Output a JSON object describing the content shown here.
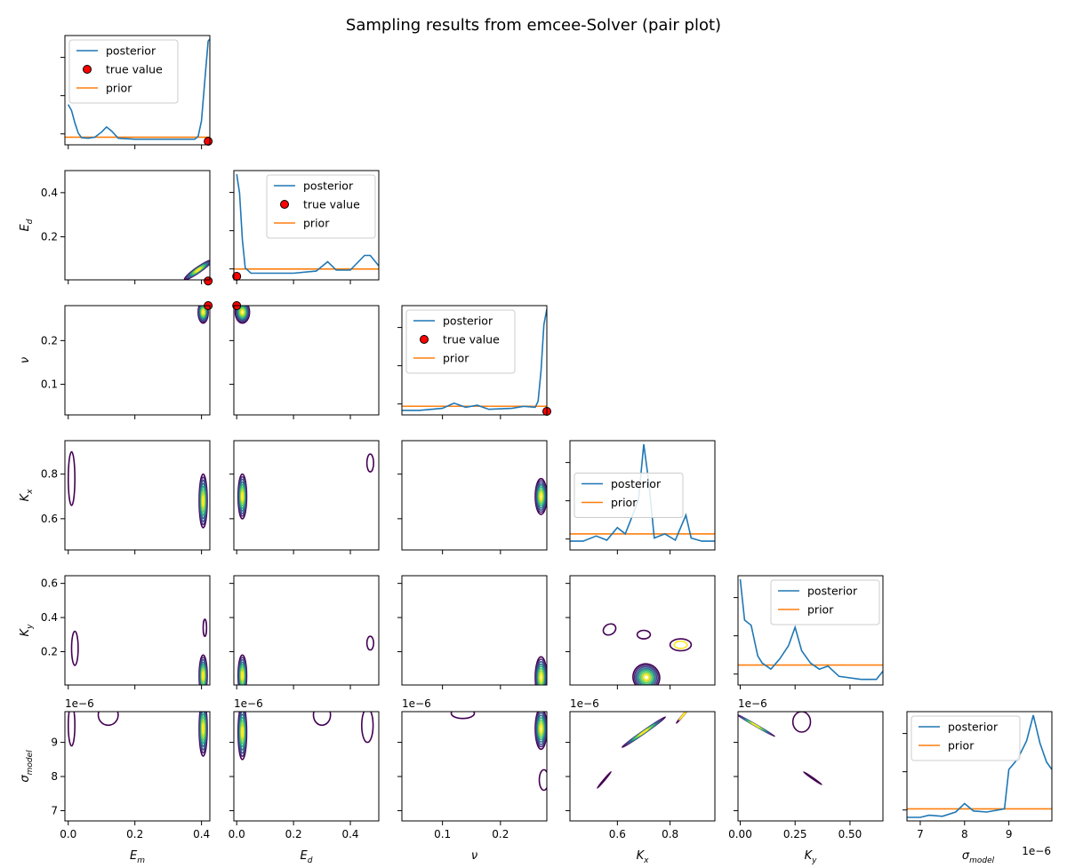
{
  "chart_data": {
    "type": "pair-plot",
    "title": "Sampling results from emcee-Solver (pair plot)",
    "parameters": [
      {
        "key": "E_m",
        "label_base": "E",
        "label_sub": "m",
        "range": [
          -0.01,
          0.425
        ],
        "ticks": [
          "0.0",
          "0.2",
          "0.4"
        ],
        "tick_values": [
          0.0,
          0.2,
          0.4
        ],
        "true_value": 0.42
      },
      {
        "key": "E_d",
        "label_base": "E",
        "label_sub": "d",
        "range": [
          -0.01,
          0.5
        ],
        "display_range": [
          0.005,
          0.5
        ],
        "ticks": [
          "0.0",
          "0.2",
          "0.4"
        ],
        "tick_values": [
          0.0,
          0.2,
          0.4
        ],
        "y_ticks": [
          "0.2",
          "0.4"
        ],
        "y_tick_values": [
          0.2,
          0.4
        ],
        "true_value": 0.0
      },
      {
        "key": "nu",
        "label_base": "ν",
        "label_sub": "",
        "range": [
          0.03,
          0.28
        ],
        "ticks": [
          "0.1",
          "0.2"
        ],
        "tick_values": [
          0.1,
          0.2
        ],
        "y_ticks": [
          "0.1",
          "0.2"
        ],
        "y_tick_values": [
          0.1,
          0.2
        ],
        "true_value": 0.28
      },
      {
        "key": "K_x",
        "label_base": "K",
        "label_sub": "x",
        "range": [
          0.42,
          0.97
        ],
        "display_range": [
          0.46,
          0.95
        ],
        "ticks": [
          "0.6",
          "0.8"
        ],
        "tick_values": [
          0.6,
          0.8
        ],
        "y_ticks": [
          "0.6",
          "0.8"
        ],
        "y_tick_values": [
          0.6,
          0.8
        ]
      },
      {
        "key": "K_y",
        "label_base": "K",
        "label_sub": "y",
        "range": [
          -0.01,
          0.65
        ],
        "display_range": [
          0.005,
          0.645
        ],
        "ticks": [
          "0.00",
          "0.25",
          "0.50"
        ],
        "tick_values": [
          0.0,
          0.25,
          0.5
        ],
        "y_ticks": [
          "0.2",
          "0.4",
          "0.6"
        ],
        "y_tick_values": [
          0.2,
          0.4,
          0.6
        ]
      },
      {
        "key": "sigma_model",
        "label_base": "σ",
        "label_sub": "model",
        "range": [
          6.7,
          9.97
        ],
        "display_range": [
          6.7,
          9.9
        ],
        "offset": "1e−6",
        "ticks": [
          "7",
          "8",
          "9"
        ],
        "tick_values": [
          7,
          8,
          9
        ],
        "y_ticks": [
          "7",
          "8",
          "9"
        ],
        "y_tick_values": [
          7,
          8,
          9
        ]
      }
    ],
    "diagonal": [
      {
        "legend": [
          "posterior",
          "true value",
          "prior"
        ],
        "legend_pos": "upper-left",
        "prior_level": 0.04,
        "posterior": [
          [
            0.0,
            0.36
          ],
          [
            0.01,
            0.3
          ],
          [
            0.02,
            0.18
          ],
          [
            0.03,
            0.08
          ],
          [
            0.04,
            0.035
          ],
          [
            0.06,
            0.03
          ],
          [
            0.08,
            0.04
          ],
          [
            0.1,
            0.09
          ],
          [
            0.115,
            0.14
          ],
          [
            0.13,
            0.1
          ],
          [
            0.15,
            0.03
          ],
          [
            0.2,
            0.02
          ],
          [
            0.3,
            0.02
          ],
          [
            0.38,
            0.02
          ],
          [
            0.39,
            0.05
          ],
          [
            0.4,
            0.2
          ],
          [
            0.41,
            0.6
          ],
          [
            0.42,
            0.98
          ],
          [
            0.425,
            1.0
          ]
        ]
      },
      {
        "legend": [
          "posterior",
          "true value",
          "prior"
        ],
        "legend_pos": "upper-right",
        "prior_level": 0.07,
        "posterior": [
          [
            0.0,
            0.98
          ],
          [
            0.01,
            0.8
          ],
          [
            0.02,
            0.35
          ],
          [
            0.03,
            0.08
          ],
          [
            0.05,
            0.03
          ],
          [
            0.1,
            0.03
          ],
          [
            0.2,
            0.03
          ],
          [
            0.28,
            0.05
          ],
          [
            0.32,
            0.14
          ],
          [
            0.35,
            0.06
          ],
          [
            0.4,
            0.06
          ],
          [
            0.45,
            0.2
          ],
          [
            0.47,
            0.2
          ],
          [
            0.5,
            0.1
          ]
        ]
      },
      {
        "legend": [
          "posterior",
          "true value",
          "prior"
        ],
        "legend_pos": "upper-left",
        "prior_level": 0.05,
        "posterior": [
          [
            0.03,
            0.01
          ],
          [
            0.06,
            0.01
          ],
          [
            0.1,
            0.03
          ],
          [
            0.12,
            0.08
          ],
          [
            0.14,
            0.04
          ],
          [
            0.16,
            0.06
          ],
          [
            0.18,
            0.02
          ],
          [
            0.22,
            0.03
          ],
          [
            0.24,
            0.05
          ],
          [
            0.26,
            0.04
          ],
          [
            0.265,
            0.1
          ],
          [
            0.27,
            0.4
          ],
          [
            0.275,
            0.85
          ],
          [
            0.28,
            1.0
          ]
        ]
      },
      {
        "legend": [
          "posterior",
          "prior"
        ],
        "legend_pos": "center-left",
        "prior_level": 0.12,
        "posterior": [
          [
            0.42,
            0.05
          ],
          [
            0.47,
            0.05
          ],
          [
            0.52,
            0.1
          ],
          [
            0.56,
            0.06
          ],
          [
            0.6,
            0.18
          ],
          [
            0.63,
            0.12
          ],
          [
            0.65,
            0.25
          ],
          [
            0.68,
            0.45
          ],
          [
            0.7,
            0.98
          ],
          [
            0.72,
            0.6
          ],
          [
            0.74,
            0.08
          ],
          [
            0.78,
            0.12
          ],
          [
            0.82,
            0.06
          ],
          [
            0.86,
            0.3
          ],
          [
            0.88,
            0.08
          ],
          [
            0.92,
            0.05
          ],
          [
            0.97,
            0.05
          ]
        ]
      },
      {
        "legend": [
          "posterior",
          "prior"
        ],
        "legend_pos": "upper-right",
        "prior_level": 0.16,
        "posterior": [
          [
            0.0,
            1.0
          ],
          [
            0.02,
            0.6
          ],
          [
            0.05,
            0.55
          ],
          [
            0.08,
            0.25
          ],
          [
            0.1,
            0.18
          ],
          [
            0.14,
            0.12
          ],
          [
            0.18,
            0.22
          ],
          [
            0.22,
            0.35
          ],
          [
            0.25,
            0.53
          ],
          [
            0.28,
            0.3
          ],
          [
            0.32,
            0.18
          ],
          [
            0.36,
            0.12
          ],
          [
            0.4,
            0.15
          ],
          [
            0.45,
            0.05
          ],
          [
            0.55,
            0.02
          ],
          [
            0.62,
            0.02
          ],
          [
            0.65,
            0.1
          ]
        ]
      },
      {
        "legend": [
          "posterior",
          "prior"
        ],
        "legend_pos": "upper-left",
        "prior_level": 0.08,
        "posterior": [
          [
            6.7,
            0.0
          ],
          [
            7.0,
            0.0
          ],
          [
            7.2,
            0.02
          ],
          [
            7.5,
            0.01
          ],
          [
            7.8,
            0.05
          ],
          [
            8.0,
            0.13
          ],
          [
            8.2,
            0.06
          ],
          [
            8.5,
            0.05
          ],
          [
            8.9,
            0.08
          ],
          [
            9.0,
            0.45
          ],
          [
            9.2,
            0.55
          ],
          [
            9.4,
            0.72
          ],
          [
            9.55,
            0.96
          ],
          [
            9.7,
            0.7
          ],
          [
            9.85,
            0.52
          ],
          [
            9.97,
            0.45
          ]
        ]
      }
    ],
    "contours": [
      {
        "row": 1,
        "col": 0,
        "blobs": [
          {
            "cx": 0.39,
            "cy": 0.05,
            "rx": 0.05,
            "ry": 0.012,
            "angle": -35,
            "levels": 8
          }
        ]
      },
      {
        "row": 2,
        "col": 0,
        "blobs": [
          {
            "cx": 0.405,
            "cy": 0.265,
            "rx": 0.015,
            "ry": 0.025,
            "angle": 0,
            "levels": 8
          }
        ]
      },
      {
        "row": 2,
        "col": 1,
        "blobs": [
          {
            "cx": 0.02,
            "cy": 0.265,
            "rx": 0.025,
            "ry": 0.025,
            "angle": 0,
            "levels": 8
          }
        ]
      },
      {
        "row": 3,
        "col": 0,
        "blobs": [
          {
            "cx": 0.405,
            "cy": 0.68,
            "rx": 0.012,
            "ry": 0.12,
            "angle": 0,
            "levels": 8
          },
          {
            "cx": 0.01,
            "cy": 0.78,
            "rx": 0.01,
            "ry": 0.12,
            "angle": 0,
            "levels": 1
          }
        ]
      },
      {
        "row": 3,
        "col": 1,
        "blobs": [
          {
            "cx": 0.02,
            "cy": 0.7,
            "rx": 0.015,
            "ry": 0.1,
            "angle": 0,
            "levels": 8
          },
          {
            "cx": 0.47,
            "cy": 0.85,
            "rx": 0.012,
            "ry": 0.04,
            "angle": 0,
            "levels": 1
          }
        ]
      },
      {
        "row": 3,
        "col": 2,
        "blobs": [
          {
            "cx": 0.27,
            "cy": 0.7,
            "rx": 0.01,
            "ry": 0.08,
            "angle": 0,
            "levels": 8
          }
        ]
      },
      {
        "row": 4,
        "col": 0,
        "blobs": [
          {
            "cx": 0.405,
            "cy": 0.06,
            "rx": 0.012,
            "ry": 0.12,
            "angle": 0,
            "levels": 8
          },
          {
            "cx": 0.02,
            "cy": 0.22,
            "rx": 0.01,
            "ry": 0.1,
            "angle": 0,
            "levels": 1
          },
          {
            "cx": 0.41,
            "cy": 0.34,
            "rx": 0.005,
            "ry": 0.05,
            "angle": 0,
            "levels": 1
          }
        ]
      },
      {
        "row": 4,
        "col": 1,
        "blobs": [
          {
            "cx": 0.02,
            "cy": 0.06,
            "rx": 0.015,
            "ry": 0.12,
            "angle": 0,
            "levels": 8
          },
          {
            "cx": 0.47,
            "cy": 0.25,
            "rx": 0.012,
            "ry": 0.04,
            "angle": 0,
            "levels": 1
          }
        ]
      },
      {
        "row": 4,
        "col": 2,
        "blobs": [
          {
            "cx": 0.27,
            "cy": 0.05,
            "rx": 0.01,
            "ry": 0.12,
            "angle": 0,
            "levels": 8
          }
        ]
      },
      {
        "row": 4,
        "col": 3,
        "blobs": [
          {
            "cx": 0.71,
            "cy": 0.05,
            "rx": 0.05,
            "ry": 0.08,
            "angle": -35,
            "levels": 8
          },
          {
            "cx": 0.57,
            "cy": 0.33,
            "rx": 0.025,
            "ry": 0.03,
            "angle": -30,
            "levels": 1
          },
          {
            "cx": 0.7,
            "cy": 0.3,
            "rx": 0.025,
            "ry": 0.025,
            "angle": 0,
            "levels": 1
          },
          {
            "cx": 0.84,
            "cy": 0.24,
            "rx": 0.04,
            "ry": 0.035,
            "angle": 0,
            "levels": 2
          }
        ]
      },
      {
        "row": 5,
        "col": 0,
        "blobs": [
          {
            "cx": 0.405,
            "cy": 9.4,
            "rx": 0.012,
            "ry": 0.8,
            "angle": 0,
            "levels": 8
          },
          {
            "cx": 0.01,
            "cy": 9.5,
            "rx": 0.01,
            "ry": 0.6,
            "angle": 0,
            "levels": 1
          },
          {
            "cx": 0.12,
            "cy": 9.8,
            "rx": 0.03,
            "ry": 0.3,
            "angle": 0,
            "levels": 1
          }
        ]
      },
      {
        "row": 5,
        "col": 1,
        "blobs": [
          {
            "cx": 0.02,
            "cy": 9.3,
            "rx": 0.015,
            "ry": 0.8,
            "angle": 0,
            "levels": 8
          },
          {
            "cx": 0.3,
            "cy": 9.8,
            "rx": 0.03,
            "ry": 0.3,
            "angle": 0,
            "levels": 1
          },
          {
            "cx": 0.46,
            "cy": 9.5,
            "rx": 0.02,
            "ry": 0.5,
            "angle": 0,
            "levels": 1
          }
        ]
      },
      {
        "row": 5,
        "col": 2,
        "blobs": [
          {
            "cx": 0.27,
            "cy": 9.4,
            "rx": 0.01,
            "ry": 0.6,
            "angle": 0,
            "levels": 8
          },
          {
            "cx": 0.135,
            "cy": 9.85,
            "rx": 0.02,
            "ry": 0.15,
            "angle": 0,
            "levels": 1
          },
          {
            "cx": 0.275,
            "cy": 7.9,
            "rx": 0.008,
            "ry": 0.3,
            "angle": 0,
            "levels": 1
          }
        ]
      },
      {
        "row": 5,
        "col": 3,
        "blobs": [
          {
            "cx": 0.7,
            "cy": 9.3,
            "rx": 0.1,
            "ry": 0.04,
            "angle": -35,
            "levels": 8
          },
          {
            "cx": 0.55,
            "cy": 7.9,
            "rx": 0.04,
            "ry": 0.015,
            "angle": -50,
            "levels": 1
          },
          {
            "cx": 0.85,
            "cy": 9.8,
            "rx": 0.04,
            "ry": 0.015,
            "angle": -50,
            "levels": 2
          }
        ]
      },
      {
        "row": 5,
        "col": 4,
        "blobs": [
          {
            "cx": 0.07,
            "cy": 9.5,
            "rx": 0.1,
            "ry": 0.02,
            "angle": 30,
            "levels": 8
          },
          {
            "cx": 0.33,
            "cy": 7.95,
            "rx": 0.05,
            "ry": 0.015,
            "angle": 35,
            "levels": 1
          },
          {
            "cx": 0.28,
            "cy": 9.6,
            "rx": 0.04,
            "ry": 0.3,
            "angle": 0,
            "levels": 1
          }
        ]
      }
    ]
  }
}
